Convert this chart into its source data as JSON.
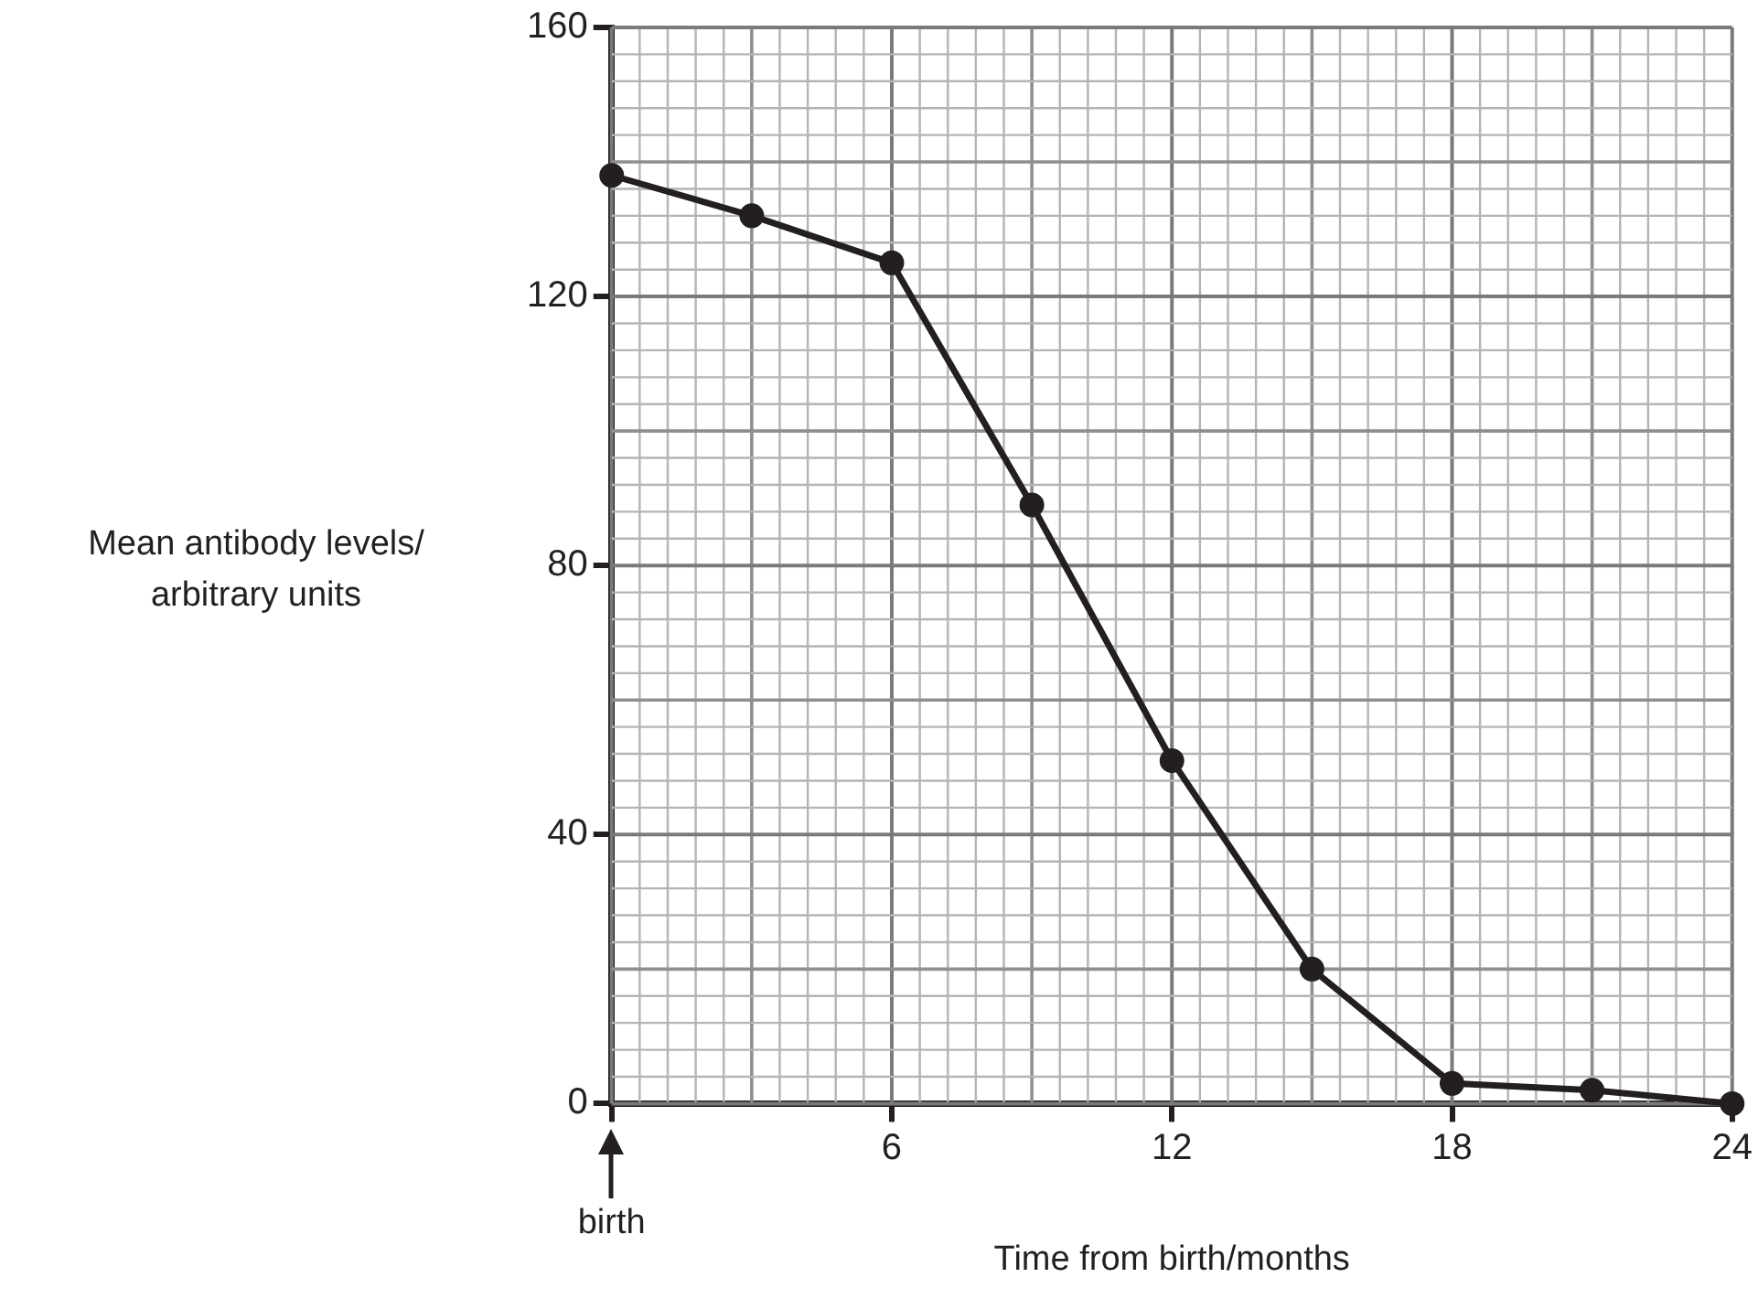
{
  "chart_data": {
    "type": "line",
    "xlabel": "Time from birth/months",
    "ylabel": "Mean antibody levels/ arbitrary units",
    "x": [
      0,
      3,
      6,
      9,
      12,
      15,
      18,
      21,
      24
    ],
    "series": [
      {
        "color": "#231f20",
        "values": [
          138,
          132,
          125,
          89,
          51,
          20,
          3,
          2,
          0
        ]
      }
    ],
    "xlim": [
      0,
      24
    ],
    "xticks": [
      {
        "value": 0,
        "label": null
      },
      6,
      12,
      18,
      24
    ],
    "ylim": [
      0,
      160
    ],
    "yticks": [
      0,
      40,
      80,
      120,
      160
    ],
    "grid": true,
    "legend": false,
    "marker": "circle",
    "line_style": "solid",
    "annotations": [
      "birth"
    ]
  }
}
